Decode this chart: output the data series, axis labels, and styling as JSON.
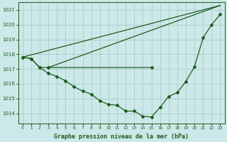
{
  "bg_color": "#cce8e8",
  "grid_color": "#aacccc",
  "line_color": "#1e5c1e",
  "title": "Graphe pression niveau de la mer (hPa)",
  "xlim": [
    -0.5,
    23.5
  ],
  "ylim": [
    1013.3,
    1021.5
  ],
  "yticks": [
    1014,
    1015,
    1016,
    1017,
    1018,
    1019,
    1020,
    1021
  ],
  "xticks": [
    0,
    1,
    2,
    3,
    4,
    5,
    6,
    7,
    8,
    9,
    10,
    11,
    12,
    13,
    14,
    15,
    16,
    17,
    18,
    19,
    20,
    21,
    22,
    23
  ],
  "series": [
    {
      "x": [
        0,
        1,
        2,
        3,
        15
      ],
      "y": [
        1017.8,
        1017.7,
        1017.1,
        1017.1,
        1017.1
      ]
    },
    {
      "x": [
        0,
        23
      ],
      "y": [
        1017.8,
        1021.3
      ]
    },
    {
      "x": [
        0,
        1,
        2,
        3,
        4,
        5,
        6,
        7,
        8,
        9,
        10,
        11,
        12,
        13,
        14,
        15,
        16,
        17,
        18,
        19,
        20,
        21,
        22,
        23
      ],
      "y": [
        1017.8,
        1017.7,
        1017.1,
        1016.7,
        1016.5,
        1016.2,
        1015.8,
        1015.5,
        1015.3,
        1014.85,
        1014.6,
        1014.55,
        1014.15,
        1014.15,
        1013.8,
        1013.75,
        1014.4,
        1015.15,
        1015.4,
        1016.15,
        1017.15,
        1019.1,
        1020.0,
        1020.7
      ]
    },
    {
      "comment": "diagonal from (3,1017.1) to (23,1021.3)",
      "x": [
        3,
        23
      ],
      "y": [
        1017.1,
        1021.3
      ]
    }
  ]
}
